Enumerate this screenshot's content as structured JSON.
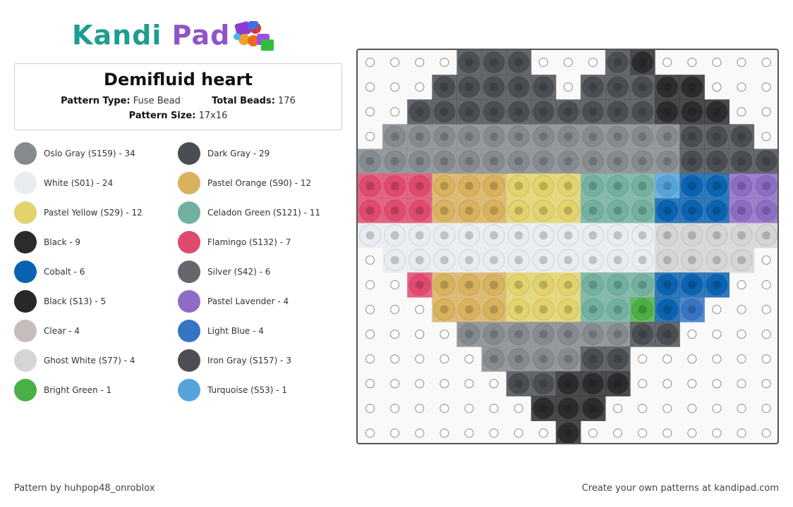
{
  "logo": {
    "part1": "Kandi",
    "part2": "Pad"
  },
  "pattern": {
    "title": "Demifluid heart",
    "type_label": "Pattern Type:",
    "type_value": "Fuse Bead",
    "beads_label": "Total Beads:",
    "beads_value": "176",
    "size_label": "Pattern Size:",
    "size_value": "17x16"
  },
  "legend": [
    {
      "label": "Oslo Gray (S159) - 34",
      "color": "#858a8f"
    },
    {
      "label": "Dark Gray - 29",
      "color": "#4a4d52"
    },
    {
      "label": "White (S01) - 24",
      "color": "#e9ecf1"
    },
    {
      "label": "Pastel Orange (S90) - 12",
      "color": "#d9b25e"
    },
    {
      "label": "Pastel Yellow (S29) - 12",
      "color": "#e2d36c"
    },
    {
      "label": "Celadon Green (S121) - 11",
      "color": "#72b09f"
    },
    {
      "label": "Black - 9",
      "color": "#2b2c2e"
    },
    {
      "label": "Flamingo (S132) - 7",
      "color": "#e04a6e"
    },
    {
      "label": "Cobalt - 6",
      "color": "#0a63b0"
    },
    {
      "label": "Silver (S42) - 6",
      "color": "#64676c"
    },
    {
      "label": "Black (S13) - 5",
      "color": "#27282a"
    },
    {
      "label": "Pastel Lavender - 4",
      "color": "#8d6cc4"
    },
    {
      "label": "Clear - 4",
      "color": "#c5bdbb"
    },
    {
      "label": "Light Blue - 4",
      "color": "#3674c4"
    },
    {
      "label": "Ghost White (S77) - 4",
      "color": "#d5d5d3"
    },
    {
      "label": "Iron Gray (S157) - 3",
      "color": "#4c4e53"
    },
    {
      "label": "Bright Green - 1",
      "color": "#4aaf45"
    },
    {
      "label": "Turquoise (S53) - 1",
      "color": "#56a3dc"
    }
  ],
  "grid": {
    "columns": 17,
    "rows": 16,
    "palette": {
      "g": "#858a8f",
      "d": "#4a4d52",
      "b": "#2b2c2e",
      "w": "#e9ecf1",
      "o": "#d9b25e",
      "y": "#e2d36c",
      "c": "#72b09f",
      "f": "#e04a6e",
      "k": "#0a63b0",
      "l": "#8d6cc4",
      "u": "#3674c4",
      "t": "#56a3dc",
      "h": "#d5d5d3",
      "e": "#4aaf45"
    },
    "cells": [
      "....ddd...db.....",
      "...ddddd.dddbb...",
      "..ddddddddddbbb..",
      ".ggggggggggggddd.",
      "gggggggggggggdddd",
      "fffoooyyyccctkkll",
      "fffoooyyyccckkkll",
      "wwwwwwwwwwwwhhhhh",
      ".wwwwwwwwwwwhhhh.",
      "..foooyyyccckkk..",
      "...oooyyycceku...",
      "....gggggggdd....",
      ".....ggggdd......",
      "......ddbbb......",
      ".......bbb.......",
      "........b........"
    ]
  },
  "footer": {
    "left": "Pattern by huhpop48_onroblox",
    "right": "Create your own patterns at kandipad.com"
  }
}
